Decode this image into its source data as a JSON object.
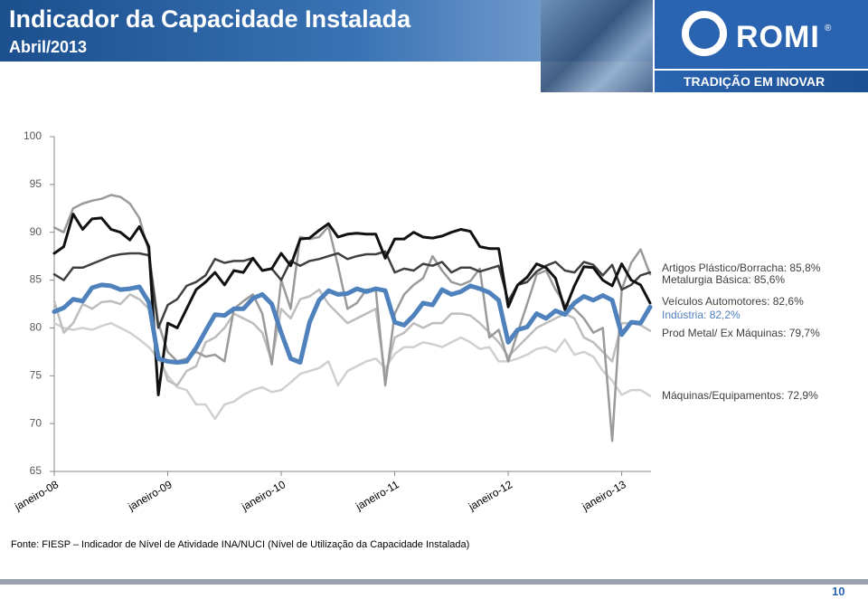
{
  "header": {
    "title": "Indicador da Capacidade Instalada",
    "subtitle": "Abril/2013"
  },
  "logo": {
    "brand": "ROMI",
    "mark": "®",
    "tagline": "TRADIÇÃO EM INOVAR"
  },
  "source": "Fonte: FIESP – Indicador de Nível de Atividade INA/NUCI (Nível de Utilização da Capacidade Instalada)",
  "page_number": "10",
  "chart_data": {
    "type": "line",
    "categories": [
      "janeiro-08",
      null,
      null,
      null,
      null,
      null,
      null,
      null,
      null,
      null,
      null,
      null,
      "janeiro-09",
      null,
      null,
      null,
      null,
      null,
      null,
      null,
      null,
      null,
      null,
      null,
      "janeiro-10",
      null,
      null,
      null,
      null,
      null,
      null,
      null,
      null,
      null,
      null,
      null,
      "janeiro-11",
      null,
      null,
      null,
      null,
      null,
      null,
      null,
      null,
      null,
      null,
      null,
      "janeiro-12",
      null,
      null,
      null,
      null,
      null,
      null,
      null,
      null,
      null,
      null,
      null,
      "janeiro-13",
      null,
      null,
      null
    ],
    "ylim": [
      65,
      100
    ],
    "yticks": [
      65,
      70,
      75,
      80,
      85,
      90,
      95,
      100
    ],
    "grid": false,
    "series": [
      {
        "name": "Artigos Plástico/Borracha: 85,8%",
        "color": "#404040",
        "width": 2.5,
        "values": [
          85.6,
          85.0,
          86.3,
          86.3,
          86.7,
          87.1,
          87.5,
          87.7,
          87.8,
          87.8,
          87.6,
          80.0,
          82.4,
          83.0,
          84.4,
          84.8,
          85.5,
          87.2,
          86.8,
          87.0,
          87.0,
          87.3,
          86.0,
          86.2,
          85.0,
          87.0,
          86.5,
          87.0,
          87.2,
          87.5,
          87.8,
          87.2,
          87.5,
          87.7,
          87.7,
          88.0,
          85.8,
          86.2,
          86.0,
          86.7,
          86.5,
          86.9,
          85.8,
          86.3,
          86.3,
          85.9,
          86.2,
          86.5,
          82.8,
          84.5,
          84.8,
          85.9,
          86.5,
          86.9,
          86.0,
          85.8,
          86.9,
          86.6,
          85.5,
          86.6,
          84.0,
          84.5,
          85.5,
          85.8
        ]
      },
      {
        "name": "Metalurgia Básica: 85,6%",
        "color": "#9a9a9a",
        "width": 2.5,
        "values": [
          90.5,
          90.0,
          92.5,
          93.0,
          93.3,
          93.5,
          93.9,
          93.7,
          93.0,
          91.5,
          88.0,
          80.5,
          77.5,
          76.5,
          76.8,
          77.5,
          77.0,
          77.2,
          76.5,
          82.0,
          82.8,
          83.5,
          81.5,
          76.2,
          85.0,
          82.0,
          89.5,
          89.3,
          89.5,
          90.6,
          86.5,
          82.0,
          82.6,
          84.0,
          84.0,
          74.0,
          81.5,
          83.5,
          84.5,
          85.2,
          87.5,
          86.0,
          84.8,
          84.5,
          84.9,
          86.2,
          79.0,
          79.8,
          76.5,
          79.5,
          82.5,
          85.6,
          86.0,
          84.0,
          82.5,
          82.0,
          81.0,
          79.5,
          80.0,
          68.2,
          84.0,
          86.8,
          88.2,
          85.6
        ]
      },
      {
        "name": "Veículos Automotores: 82,6%",
        "color": "#111111",
        "width": 3,
        "values": [
          87.8,
          88.5,
          91.9,
          90.3,
          91.4,
          91.5,
          90.3,
          90.0,
          89.2,
          90.6,
          88.5,
          73.0,
          80.5,
          80.0,
          82.0,
          84.0,
          84.8,
          85.8,
          84.5,
          86.0,
          85.8,
          87.3,
          86.0,
          86.2,
          87.8,
          86.5,
          89.3,
          89.4,
          90.2,
          90.9,
          89.5,
          89.8,
          89.9,
          89.8,
          89.8,
          87.3,
          89.3,
          89.3,
          90.0,
          89.5,
          89.4,
          89.6,
          90.0,
          90.3,
          90.1,
          88.5,
          88.3,
          88.3,
          82.2,
          84.5,
          85.3,
          86.7,
          86.3,
          85.2,
          81.9,
          84.4,
          86.4,
          86.3,
          85.0,
          84.4,
          86.7,
          85.0,
          84.5,
          82.6
        ]
      },
      {
        "name": "Indústria: 82,2%",
        "color": "#4f81bd",
        "width": 5,
        "values": [
          81.7,
          82.1,
          83.0,
          82.8,
          84.2,
          84.5,
          84.4,
          84.0,
          84.1,
          84.3,
          82.7,
          76.8,
          76.5,
          76.4,
          76.5,
          77.9,
          79.7,
          81.4,
          81.3,
          82.0,
          82.0,
          83.1,
          83.5,
          82.5,
          79.5,
          76.8,
          76.4,
          80.6,
          82.9,
          83.9,
          83.5,
          83.6,
          84.1,
          83.8,
          84.1,
          83.9,
          80.6,
          80.3,
          81.3,
          82.6,
          82.4,
          84.0,
          83.5,
          83.8,
          84.4,
          84.1,
          83.7,
          82.9,
          78.5,
          79.8,
          80.1,
          81.5,
          81.0,
          81.8,
          81.4,
          82.6,
          83.3,
          82.9,
          83.4,
          82.9,
          79.3,
          80.6,
          80.5,
          82.2
        ]
      },
      {
        "name": "Prod Metal/ Ex Máquinas: 79,7%",
        "color": "#bdbdbd",
        "width": 2.5,
        "values": [
          82.8,
          79.5,
          80.5,
          82.5,
          82.0,
          82.7,
          82.8,
          82.5,
          83.5,
          83.0,
          82.0,
          77.5,
          74.5,
          74.0,
          75.5,
          76.0,
          78.5,
          79.0,
          80.0,
          81.5,
          81.0,
          80.5,
          79.5,
          76.5,
          82.0,
          81.0,
          83.0,
          83.3,
          84.0,
          82.5,
          81.5,
          80.5,
          81.0,
          81.5,
          82.0,
          75.0,
          79.0,
          79.5,
          80.5,
          80.0,
          80.5,
          80.5,
          81.5,
          81.5,
          81.3,
          80.5,
          79.5,
          78.5,
          77.0,
          78.0,
          79.0,
          80.0,
          80.5,
          81.0,
          81.5,
          81.0,
          79.0,
          78.5,
          77.5,
          76.5,
          80.5,
          80.5,
          80.3,
          79.7
        ]
      },
      {
        "name": "Máquinas/Equipamentos: 72,9%",
        "color": "#d0d0d0",
        "width": 2.5,
        "values": [
          80.5,
          80.0,
          79.8,
          80.0,
          79.8,
          80.2,
          80.5,
          80.0,
          79.5,
          78.8,
          78.0,
          76.8,
          75.0,
          73.8,
          73.5,
          72.0,
          72.0,
          70.5,
          72.0,
          72.3,
          73.0,
          73.5,
          73.8,
          73.3,
          73.5,
          74.3,
          75.2,
          75.5,
          75.8,
          76.5,
          74.0,
          75.5,
          76.0,
          76.5,
          76.8,
          75.8,
          77.3,
          78.0,
          78.0,
          78.5,
          78.3,
          78.0,
          78.5,
          79.0,
          78.5,
          77.8,
          78.0,
          76.5,
          76.5,
          76.8,
          77.2,
          77.8,
          78.0,
          77.5,
          78.8,
          77.2,
          77.5,
          77.0,
          75.5,
          74.5,
          73.0,
          73.5,
          73.5,
          72.9
        ]
      }
    ],
    "legend_colors": [
      "#404040",
      "#404040",
      "#404040",
      "#4f81bd",
      "#404040",
      "#404040"
    ]
  }
}
